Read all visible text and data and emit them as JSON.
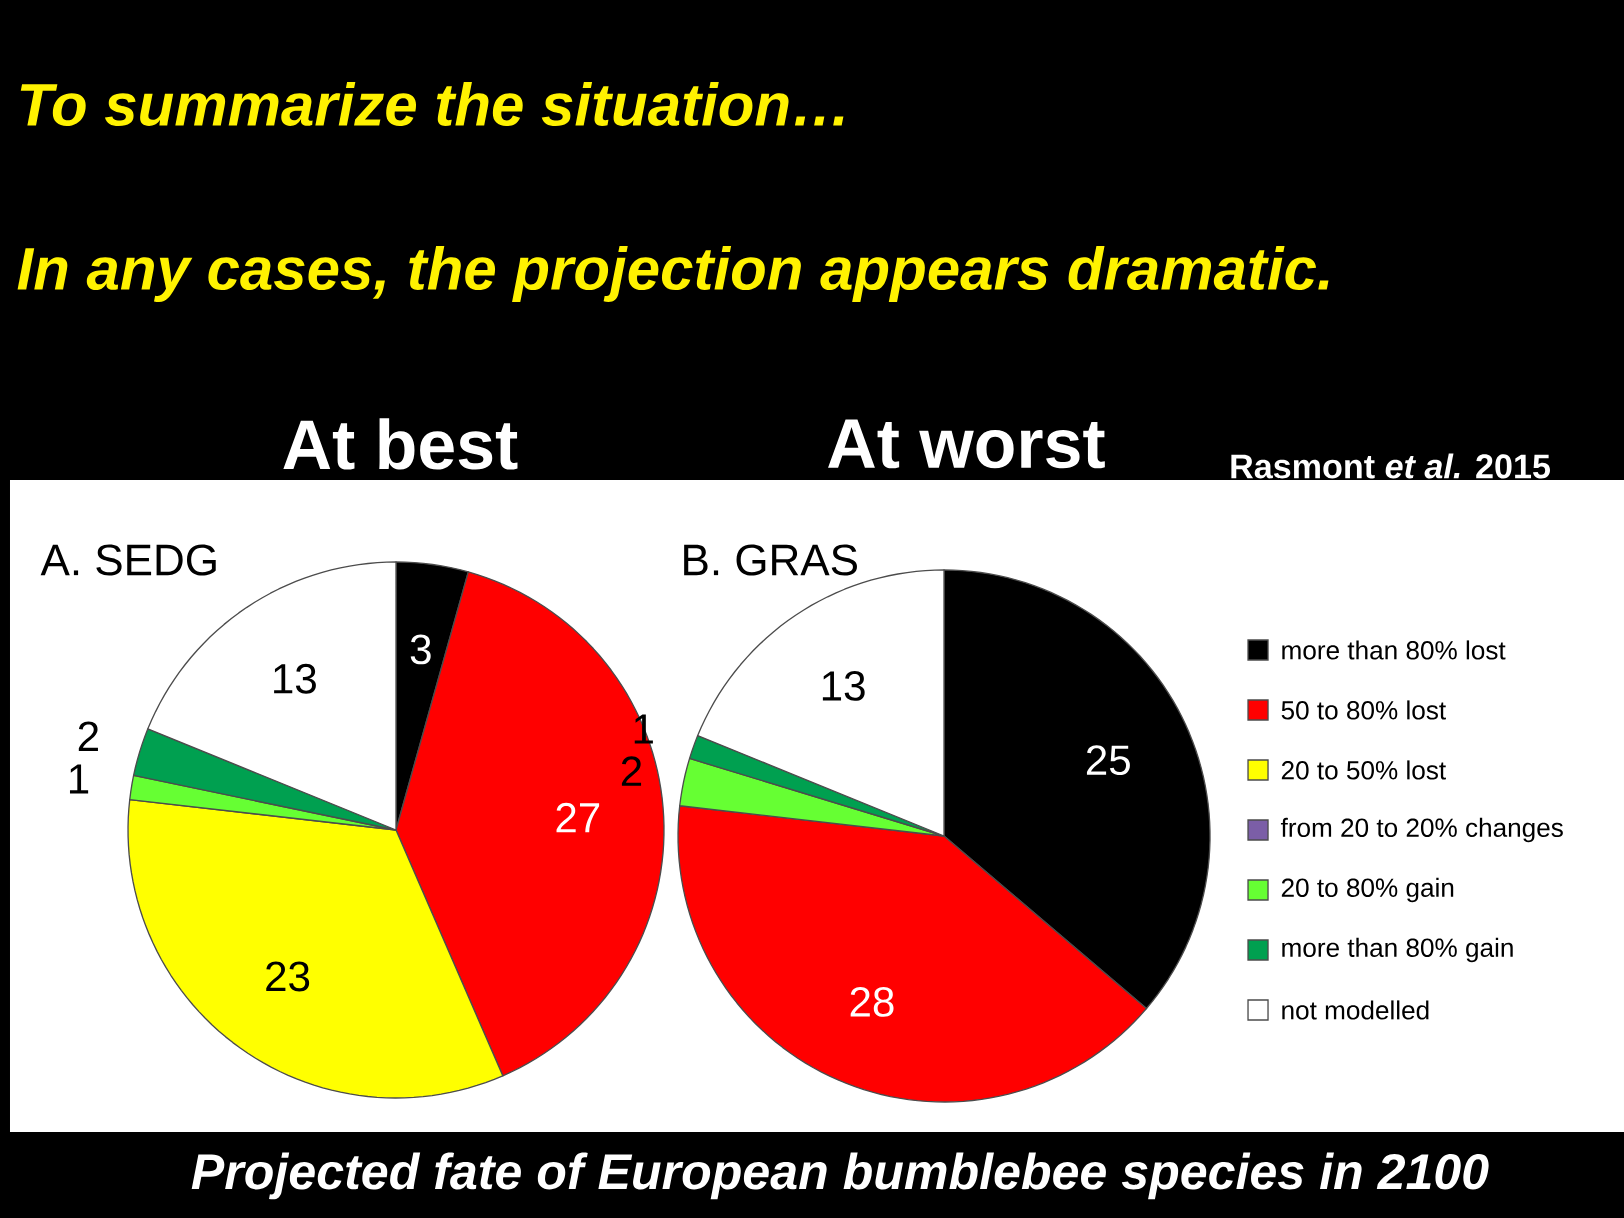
{
  "chart_data": [
    {
      "type": "pie",
      "title": "A. SEDG",
      "subtitle": "At best",
      "categories": [
        null,
        null,
        null,
        null,
        null,
        null,
        null
      ],
      "values": [
        3,
        27,
        23,
        0,
        1,
        2,
        13
      ],
      "colors": [
        "#000000",
        "#ff0000",
        "#ffff00",
        "#7b5ea7",
        "#66ff33",
        "#00a050",
        "#ffffff"
      ],
      "data_labels": true,
      "annotations": [
        "To summarize the situation…",
        "In any cases, the projection appears dramatic.",
        "Rasmont *et al.* 2015",
        "Projected fate of European bumblebee species in 2100"
      ]
    },
    {
      "type": "pie",
      "title": "B.  GRAS",
      "subtitle": "At worst",
      "categories": [
        "more than 80% lost",
        "50 to 80% lost",
        "20 to 50% lost",
        "from 20 to 20% changes",
        "20 to 80% gain",
        "more than 80% gain",
        "not modelled"
      ],
      "values": [
        25,
        28,
        0,
        0,
        2,
        1,
        13
      ],
      "colors": [
        "#000000",
        "#ff0000",
        "#ffff00",
        "#7b5ea7",
        "#66ff33",
        "#00a050",
        "#ffffff"
      ],
      "data_labels": true,
      "legend": "right"
    }
  ]
}
